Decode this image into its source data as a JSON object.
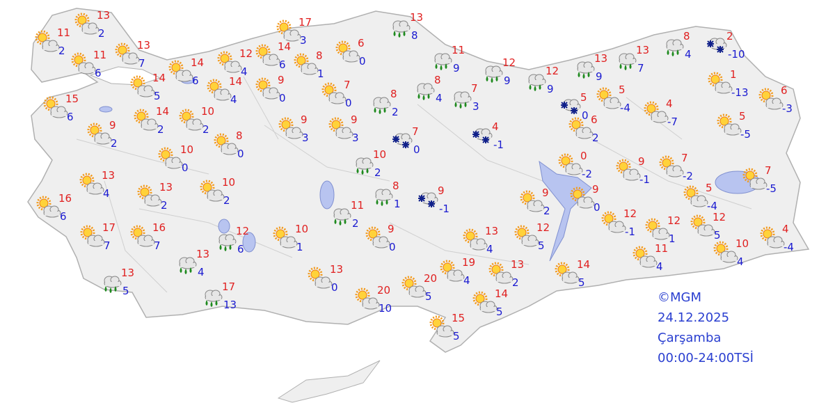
{
  "stations": [
    {
      "high": 11,
      "low": 2
    },
    {
      "high": 13,
      "low": 2
    },
    {
      "high": 11,
      "low": 6
    },
    {
      "high": 13,
      "low": 7
    },
    {
      "high": 14,
      "low": 5
    },
    {
      "high": 14,
      "low": 6
    },
    {
      "high": 12,
      "low": 4
    },
    {
      "high": 14,
      "low": 6
    },
    {
      "high": 17,
      "low": 3
    },
    {
      "high": 8,
      "low": 1
    },
    {
      "high": 6,
      "low": 0
    },
    {
      "high": 13,
      "low": 8
    },
    {
      "high": 11,
      "low": 9
    },
    {
      "high": 12,
      "low": 9
    },
    {
      "high": 12,
      "low": 9
    },
    {
      "high": 13,
      "low": 9
    },
    {
      "high": 13,
      "low": 7
    },
    {
      "high": 8,
      "low": 4
    },
    {
      "high": 2,
      "low": -10
    },
    {
      "high": 1,
      "low": -13
    },
    {
      "high": 6,
      "low": -3
    },
    {
      "high": 5,
      "low": -5
    },
    {
      "high": 4,
      "low": -7
    },
    {
      "high": 5,
      "low": -4
    },
    {
      "high": 5,
      "low": 0
    },
    {
      "high": 6,
      "low": 2
    },
    {
      "high": 4,
      "low": -1
    },
    {
      "high": 8,
      "low": 4
    },
    {
      "high": 7,
      "low": 3
    },
    {
      "high": 8,
      "low": 2
    },
    {
      "high": 7,
      "low": 0
    },
    {
      "high": 9,
      "low": 0
    },
    {
      "high": 14,
      "low": 4
    },
    {
      "high": 15,
      "low": 6
    },
    {
      "high": 9,
      "low": 2
    },
    {
      "high": 14,
      "low": 2
    },
    {
      "high": 10,
      "low": 2
    },
    {
      "high": 10,
      "low": 0
    },
    {
      "high": 8,
      "low": 0
    },
    {
      "high": 9,
      "low": 3
    },
    {
      "high": 9,
      "low": 3
    },
    {
      "high": 7,
      "low": 0
    },
    {
      "high": 10,
      "low": 2
    },
    {
      "high": 13,
      "low": 4
    },
    {
      "high": 13,
      "low": 2
    },
    {
      "high": 10,
      "low": 2
    },
    {
      "high": 16,
      "low": 6
    },
    {
      "high": 17,
      "low": 7
    },
    {
      "high": 16,
      "low": 7
    },
    {
      "high": 12,
      "low": 6
    },
    {
      "high": 10,
      "low": 1
    },
    {
      "high": 11,
      "low": 2
    },
    {
      "high": 8,
      "low": 1
    },
    {
      "high": 9,
      "low": 0
    },
    {
      "high": 9,
      "low": -1
    },
    {
      "high": 13,
      "low": 4
    },
    {
      "high": 13,
      "low": 5
    },
    {
      "high": 17,
      "low": 13
    },
    {
      "high": 13,
      "low": 0
    },
    {
      "high": 20,
      "low": 10
    },
    {
      "high": 20,
      "low": 5
    },
    {
      "high": 15,
      "low": 5
    },
    {
      "high": 19,
      "low": 4
    },
    {
      "high": 13,
      "low": 4
    },
    {
      "high": 13,
      "low": 2
    },
    {
      "high": 14,
      "low": 5
    },
    {
      "high": 12,
      "low": 5
    },
    {
      "high": 9,
      "low": 2
    },
    {
      "high": 0,
      "low": -2
    },
    {
      "high": 9,
      "low": 0
    },
    {
      "high": 14,
      "low": 5
    },
    {
      "high": 12,
      "low": -1
    },
    {
      "high": 9,
      "low": -1
    },
    {
      "high": 7,
      "low": -2
    },
    {
      "high": 12,
      "low": 1
    },
    {
      "high": 5,
      "low": -4
    },
    {
      "high": 12,
      "low": 5
    },
    {
      "high": 11,
      "low": 4
    },
    {
      "high": 10,
      "low": 4
    },
    {
      "high": 7,
      "low": -5
    },
    {
      "high": 4,
      "low": -4
    }
  ],
  "credit": {
    "source": "©MGM",
    "date": "24.12.2025",
    "day": "Çarşamba",
    "period": "00:00-24:00TSİ"
  }
}
